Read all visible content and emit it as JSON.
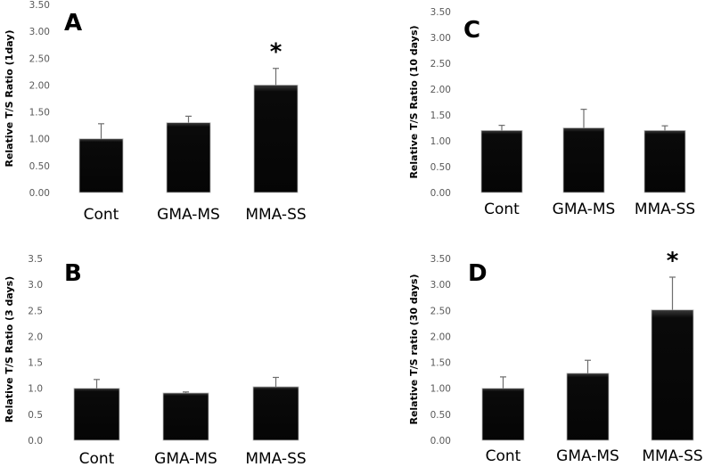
{
  "chart_data": [
    {
      "type": "bar",
      "panel": "A",
      "title": "",
      "xlabel": "",
      "ylabel": "Relative T/S Ratio (1day)",
      "ylim": [
        0,
        3.5
      ],
      "yticks": [
        "0.00",
        "0.50",
        "1.00",
        "1.50",
        "2.00",
        "2.50",
        "3.00",
        "3.50"
      ],
      "categories": [
        "Cont",
        "GMA-MS",
        "MMA-SS"
      ],
      "values": [
        1.0,
        1.3,
        2.0
      ],
      "error_upper": [
        1.28,
        1.42,
        2.31
      ],
      "significance": [
        "",
        "",
        "*"
      ],
      "grid": false,
      "bar_color": "#0a0a0a"
    },
    {
      "type": "bar",
      "panel": "B",
      "title": "",
      "xlabel": "",
      "ylabel": "Relative T/S Ratio (3 days)",
      "ylim": [
        0,
        3.5
      ],
      "yticks": [
        "0.0",
        "0.5",
        "1.0",
        "1.5",
        "2.0",
        "2.5",
        "3.0",
        "3.5"
      ],
      "categories": [
        "Cont",
        "GMA-MS",
        "MMA-SS"
      ],
      "values": [
        1.0,
        0.91,
        1.03
      ],
      "error_upper": [
        1.17,
        0.93,
        1.21
      ],
      "significance": [
        "",
        "",
        ""
      ],
      "grid": false,
      "bar_color": "#0a0a0a"
    },
    {
      "type": "bar",
      "panel": "C",
      "title": "",
      "xlabel": "",
      "ylabel": "Relative T/S Ratio (10 days)",
      "ylim": [
        0,
        3.5
      ],
      "yticks": [
        "0.00",
        "0.50",
        "1.00",
        "1.50",
        "2.00",
        "2.50",
        "3.00",
        "3.50"
      ],
      "categories": [
        "Cont",
        "GMA-MS",
        "MMA-SS"
      ],
      "values": [
        1.2,
        1.25,
        1.2
      ],
      "error_upper": [
        1.3,
        1.61,
        1.29
      ],
      "significance": [
        "",
        "",
        ""
      ],
      "grid": false,
      "bar_color": "#0a0a0a"
    },
    {
      "type": "bar",
      "panel": "D",
      "title": "",
      "xlabel": "",
      "ylabel": "Relative T/S ratio (30 days)",
      "ylim": [
        0,
        3.5
      ],
      "yticks": [
        "0.00",
        "0.50",
        "1.00",
        "1.50",
        "2.00",
        "2.50",
        "3.00",
        "3.50"
      ],
      "categories": [
        "Cont",
        "GMA-MS",
        "MMA-SS"
      ],
      "values": [
        1.0,
        1.29,
        2.51
      ],
      "error_upper": [
        1.22,
        1.54,
        3.14
      ],
      "significance": [
        "",
        "",
        "*"
      ],
      "grid": false,
      "bar_color": "#0a0a0a"
    }
  ]
}
